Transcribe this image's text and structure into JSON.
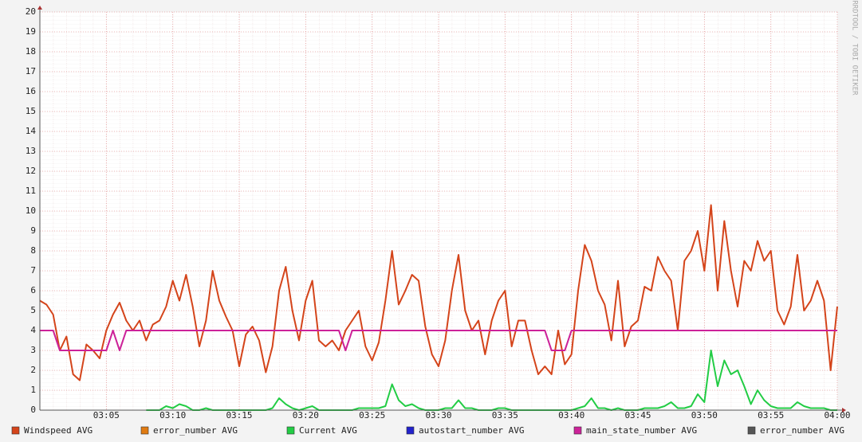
{
  "chart_data": {
    "type": "line",
    "side_label": "RRDTOOL / TOBI OETIKER",
    "categories": [
      null,
      null,
      null,
      null,
      null,
      null,
      null,
      null,
      null,
      null,
      "03:05",
      null,
      null,
      null,
      null,
      null,
      null,
      null,
      null,
      null,
      "03:10",
      null,
      null,
      null,
      null,
      null,
      null,
      null,
      null,
      null,
      "03:15",
      null,
      null,
      null,
      null,
      null,
      null,
      null,
      null,
      null,
      "03:20",
      null,
      null,
      null,
      null,
      null,
      null,
      null,
      null,
      null,
      "03:25",
      null,
      null,
      null,
      null,
      null,
      null,
      null,
      null,
      null,
      "03:30",
      null,
      null,
      null,
      null,
      null,
      null,
      null,
      null,
      null,
      "03:35",
      null,
      null,
      null,
      null,
      null,
      null,
      null,
      null,
      null,
      "03:40",
      null,
      null,
      null,
      null,
      null,
      null,
      null,
      null,
      null,
      "03:45",
      null,
      null,
      null,
      null,
      null,
      null,
      null,
      null,
      null,
      "03:50",
      null,
      null,
      null,
      null,
      null,
      null,
      null,
      null,
      null,
      "03:55",
      null,
      null,
      null,
      null,
      null,
      null,
      null,
      null,
      null,
      "04:00"
    ],
    "series": [
      {
        "name": "Windspeed AVG",
        "color": "#d4441a",
        "values": [
          5.5,
          5.3,
          4.8,
          3.0,
          3.7,
          1.8,
          1.5,
          3.3,
          3.0,
          2.6,
          4.0,
          4.8,
          5.4,
          4.5,
          4.0,
          4.5,
          3.5,
          4.3,
          4.5,
          5.2,
          6.5,
          5.5,
          6.8,
          5.2,
          3.2,
          4.5,
          7.0,
          5.5,
          4.7,
          4.0,
          2.2,
          3.8,
          4.2,
          3.5,
          1.9,
          3.2,
          6.0,
          7.2,
          5.0,
          3.5,
          5.5,
          6.5,
          3.5,
          3.2,
          3.5,
          3.0,
          4.0,
          4.5,
          5.0,
          3.2,
          2.5,
          3.4,
          5.5,
          8.0,
          5.3,
          6.0,
          6.8,
          6.5,
          4.2,
          2.8,
          2.2,
          3.5,
          6.0,
          7.8,
          5.0,
          4.0,
          4.5,
          2.8,
          4.5,
          5.5,
          6.0,
          3.2,
          4.5,
          4.5,
          3.0,
          1.8,
          2.2,
          1.8,
          4.0,
          2.3,
          2.8,
          6.0,
          8.3,
          7.5,
          6.0,
          5.3,
          3.5,
          6.5,
          3.2,
          4.2,
          4.5,
          6.2,
          6.0,
          7.7,
          7.0,
          6.5,
          4.0,
          7.5,
          8.0,
          9.0,
          7.0,
          10.3,
          6.0,
          9.5,
          7.0,
          5.2,
          7.5,
          7.0,
          8.5,
          7.5,
          8.0,
          5.0,
          4.3,
          5.2,
          7.8,
          5.0,
          5.5,
          6.5,
          5.5,
          2.0,
          5.2
        ]
      },
      {
        "name": "error_number AVG",
        "color": "#e07b12"
      },
      {
        "name": "Current AVG",
        "color": "#22cc44",
        "values": [
          null,
          null,
          null,
          null,
          null,
          null,
          null,
          null,
          null,
          null,
          null,
          null,
          null,
          null,
          null,
          null,
          0,
          0,
          0,
          0.2,
          0.1,
          0.3,
          0.2,
          0,
          0,
          0.1,
          0,
          0,
          0,
          0,
          0,
          0,
          0,
          0,
          0,
          0.1,
          0.6,
          0.3,
          0.1,
          0,
          0.1,
          0.2,
          0,
          0,
          0,
          0,
          0,
          0,
          0.1,
          0.1,
          0.1,
          0.1,
          0.2,
          1.3,
          0.5,
          0.2,
          0.3,
          0.1,
          0,
          0,
          0,
          0.1,
          0.1,
          0.5,
          0.1,
          0.1,
          0,
          0,
          0,
          0.1,
          0.1,
          0,
          0,
          0,
          0,
          0,
          0,
          0,
          0,
          0,
          0,
          0.1,
          0.2,
          0.6,
          0.1,
          0.1,
          0,
          0.1,
          0,
          0,
          0,
          0.1,
          0.1,
          0.1,
          0.2,
          0.4,
          0.1,
          0.1,
          0.2,
          0.8,
          0.4,
          3.0,
          1.2,
          2.5,
          1.8,
          2.0,
          1.2,
          0.3,
          1.0,
          0.5,
          0.2,
          0.1,
          0.1,
          0.1,
          0.4,
          0.2,
          0.1,
          0.1,
          0.1,
          0,
          0
        ]
      },
      {
        "name": "autostart_number AVG",
        "color": "#2222cc"
      },
      {
        "name": "main_state_number AVG",
        "color": "#cc2299",
        "values": [
          4,
          4,
          4,
          3,
          3,
          3,
          3,
          3,
          3,
          3,
          3,
          4,
          3,
          4,
          4,
          4,
          4,
          4,
          4,
          4,
          4,
          4,
          4,
          4,
          4,
          4,
          4,
          4,
          4,
          4,
          4,
          4,
          4,
          4,
          4,
          4,
          4,
          4,
          4,
          4,
          4,
          4,
          4,
          4,
          4,
          4,
          3,
          4,
          4,
          4,
          4,
          4,
          4,
          4,
          4,
          4,
          4,
          4,
          4,
          4,
          4,
          4,
          4,
          4,
          4,
          4,
          4,
          4,
          4,
          4,
          4,
          4,
          4,
          4,
          4,
          4,
          4,
          3,
          3,
          3,
          4,
          4,
          4,
          4,
          4,
          4,
          4,
          4,
          4,
          4,
          4,
          4,
          4,
          4,
          4,
          4,
          4,
          4,
          4,
          4,
          4,
          4,
          4,
          4,
          4,
          4,
          4,
          4,
          4,
          4,
          4,
          4,
          4,
          4,
          4,
          4,
          4,
          4,
          4,
          4,
          4
        ]
      },
      {
        "name": "error_number AVG",
        "color": "#555555"
      }
    ],
    "ylim": [
      0,
      20
    ],
    "yticks": [
      0,
      1,
      2,
      3,
      4,
      5,
      6,
      7,
      8,
      9,
      10,
      11,
      12,
      13,
      14,
      15,
      16,
      17,
      18,
      19,
      20
    ],
    "grid": true
  }
}
